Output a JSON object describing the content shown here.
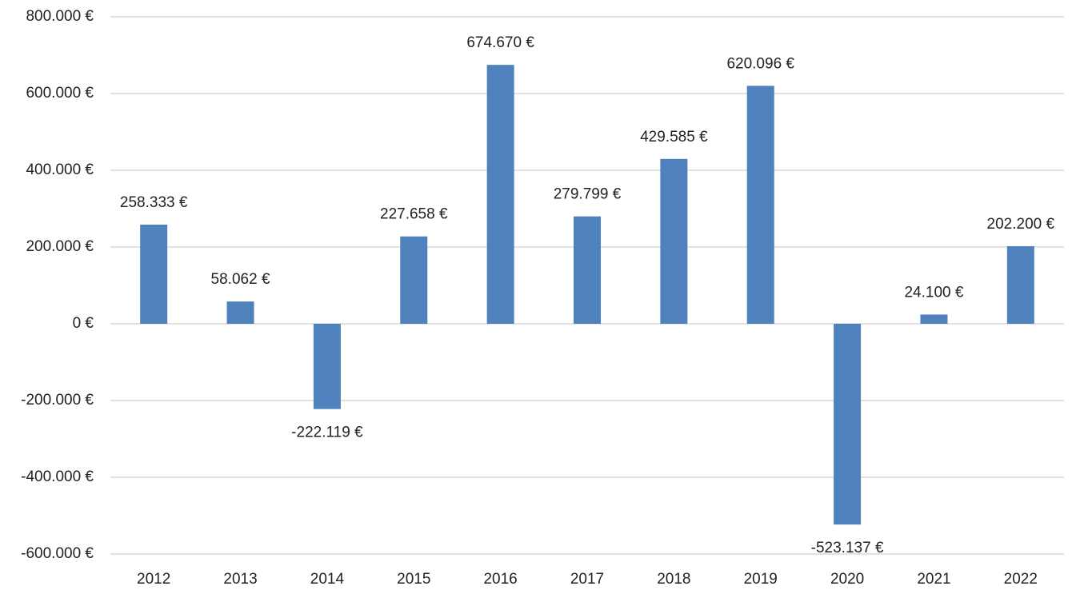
{
  "chart_data": {
    "type": "bar",
    "categories": [
      "2012",
      "2013",
      "2014",
      "2015",
      "2016",
      "2017",
      "2018",
      "2019",
      "2020",
      "2021",
      "2022"
    ],
    "values": [
      258333,
      58062,
      -222119,
      227658,
      674670,
      279799,
      429585,
      620096,
      -523137,
      24100,
      202200
    ],
    "value_labels": [
      "258.333 €",
      "58.062 €",
      "-222.119 €",
      "227.658 €",
      "674.670 €",
      "279.799 €",
      "429.585 €",
      "620.096 €",
      "-523.137 €",
      "24.100 €",
      "202.200 €"
    ],
    "color": "#4f81bd",
    "ylim": [
      -600000,
      800000
    ],
    "yticks": [
      {
        "value": -600000,
        "label": "-600.000 €"
      },
      {
        "value": -400000,
        "label": "-400.000 €"
      },
      {
        "value": -200000,
        "label": "-200.000 €"
      },
      {
        "value": 0,
        "label": "0 €"
      },
      {
        "value": 200000,
        "label": "200.000 €"
      },
      {
        "value": 400000,
        "label": "400.000 €"
      },
      {
        "value": 600000,
        "label": "600.000 €"
      },
      {
        "value": 800000,
        "label": "800.000 €"
      }
    ],
    "grid": true
  }
}
